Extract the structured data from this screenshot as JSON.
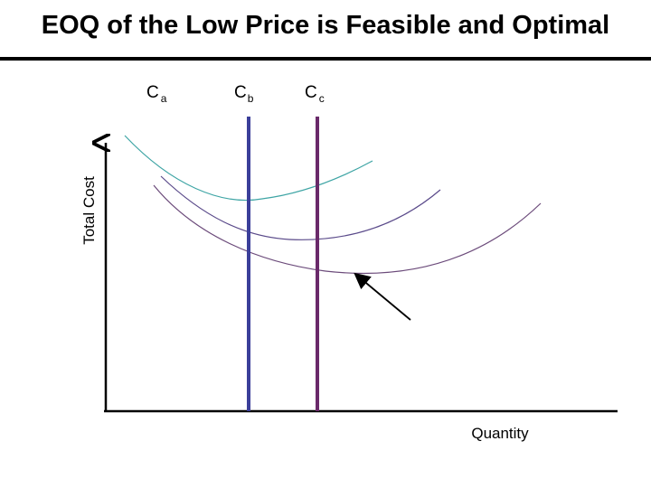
{
  "title": "EOQ of the Low Price is Feasible and Optimal",
  "axes": {
    "y_label": "Total Cost",
    "x_label": "Quantity"
  },
  "curves": [
    {
      "letter": "C",
      "subscript": "a",
      "color": "#3fa5a5"
    },
    {
      "letter": "C",
      "subscript": "b",
      "color": "#5a4a8a"
    },
    {
      "letter": "C",
      "subscript": "c",
      "color": "#6b4a7a"
    }
  ],
  "price_breaks": [
    {
      "color": "#3b3f9a"
    },
    {
      "color": "#6a2a6a"
    }
  ],
  "colors": {
    "axis": "#000000",
    "arrow": "#000000"
  }
}
